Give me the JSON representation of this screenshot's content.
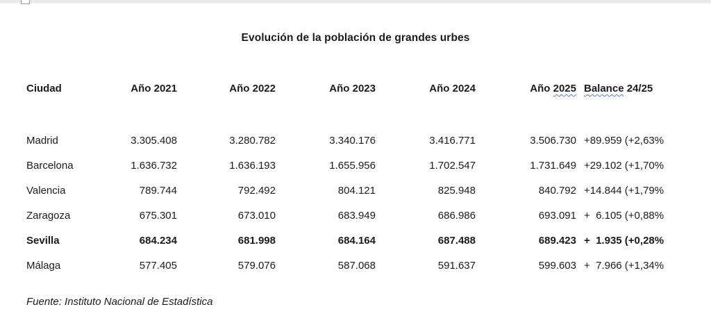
{
  "document": {
    "title": "Evolución de la población de grandes urbes",
    "source_note": "Fuente: Instituto Nacional de Estadística"
  },
  "table": {
    "header": {
      "city": "Ciudad",
      "year_2021": "Año 2021",
      "year_2022": "Año 2022",
      "year_2023": "Año 2023",
      "year_2024": "Año 2024",
      "year_2025_prefix": "Año ",
      "year_2025_number": "2025",
      "balance_word": "Balance",
      "balance_suffix": " 24/25"
    },
    "rows": [
      {
        "city": "Madrid",
        "values": [
          "3.305.408",
          "3.280.782",
          "3.340.176",
          "3.416.771",
          "3.506.730"
        ],
        "balance": "+89.959 (+2,63%",
        "bold": false
      },
      {
        "city": "Barcelona",
        "values": [
          "1.636.732",
          "1.636.193",
          "1.655.956",
          "1.702.547",
          "1.731.649"
        ],
        "balance": "+29.102 (+1,70%",
        "bold": false
      },
      {
        "city": "Valencia",
        "values": [
          "789.744",
          "792.492",
          "804.121",
          "825.948",
          "840.792"
        ],
        "balance": "+14.844 (+1,79%",
        "bold": false
      },
      {
        "city": "Zaragoza",
        "values": [
          "675.301",
          "673.010",
          "683.949",
          "686.986",
          "693.091"
        ],
        "balance": "+  6.105 (+0,88%",
        "bold": false
      },
      {
        "city": "Sevilla",
        "values": [
          "684.234",
          "681.998",
          "684.164",
          "687.488",
          "689.423"
        ],
        "balance": "+  1.935 (+0,28%",
        "bold": true
      },
      {
        "city": "Málaga",
        "values": [
          "577.405",
          "579.076",
          "587.068",
          "591.637",
          "599.603"
        ],
        "balance": "+  7.966 (+1,34%",
        "bold": false
      }
    ]
  },
  "colors": {
    "text": "#1b1b1b",
    "spellcheck_underline": "#4a7fd6",
    "chrome_strip": "#e9e9e9"
  }
}
